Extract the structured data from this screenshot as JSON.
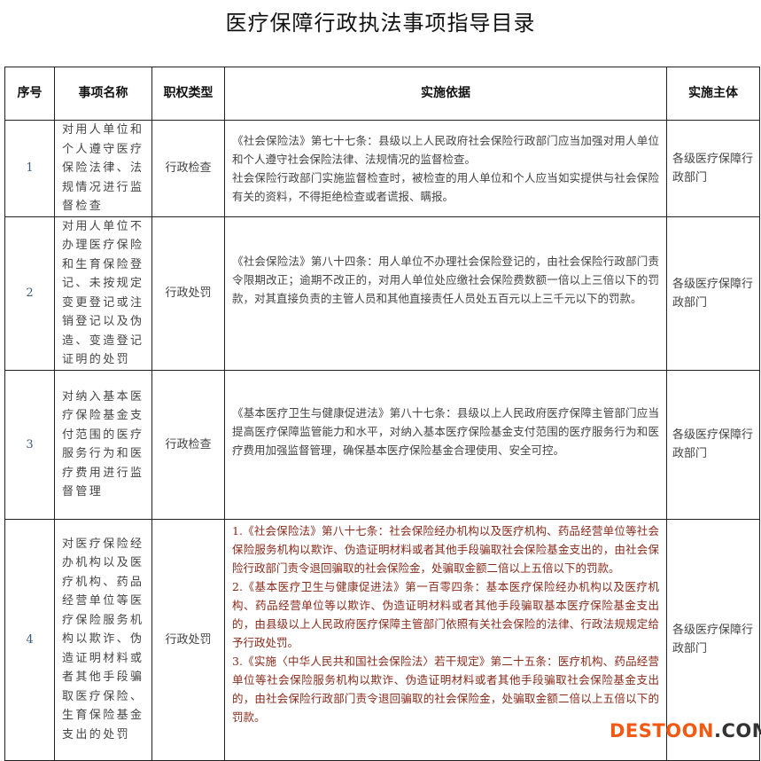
{
  "title": "医疗保障行政执法事项指导目录",
  "headers": [
    "序号",
    "事项名称",
    "职权类型",
    "实施依据",
    "实施主体"
  ],
  "rows": [
    {
      "no": "1",
      "name": "对用人单位和个人遵守医疗保险法律、法规情况进行监督检查",
      "type": "行政检查",
      "basis": [
        "《社会保险法》第七十七条：县级以上人民政府社会保险行政部门应当加强对用人单位和个人遵守社会保险法律、法规情况的监督检查。",
        "社会保险行政部门实施监督检查时，被检查的用人单位和个人应当如实提供与社会保险有关的资料，不得拒绝检查或者谎报、瞒报。"
      ],
      "body": "各级医疗保障行政部门"
    },
    {
      "no": "2",
      "name": "对用人单位不办理医疗保险和生育保险登记、未按规定变更登记或注销登记以及伪造、变造登记证明的处罚",
      "type": "行政处罚",
      "basis": [
        "《社会保险法》第八十四条：用人单位不办理社会保险登记的，由社会保险行政部门责令限期改正；逾期不改正的，对用人单位处应缴社会保险费数额一倍以上三倍以下的罚款，对其直接负责的主管人员和其他直接责任人员处五百元以上三千元以下的罚款。"
      ],
      "body": "各级医疗保障行政部门"
    },
    {
      "no": "3",
      "name": "对纳入基本医疗保险基金支付范围的医疗服务行为和医疗费用进行监督管理",
      "type": "行政检查",
      "basis": [
        "《基本医疗卫生与健康促进法》第八十七条：县级以上人民政府医疗保障主管部门应当提高医疗保障监管能力和水平，对纳入基本医疗保险基金支付范围的医疗服务行为和医疗费用加强监督管理，确保基本医疗保险基金合理使用、安全可控。"
      ],
      "body": "各级医疗保障行政部门"
    },
    {
      "no": "4",
      "name": "对医疗保险经办机构以及医疗机构、药品经营单位等医疗保险服务机构以欺诈、伪造证明材料或者其他手段骗取医疗保险、生育保险基金支出的处罚",
      "type": "行政处罚",
      "basis": [
        "1.《社会保险法》第八十七条：社会保险经办机构以及医疗机构、药品经营单位等社会保险服务机构以欺诈、伪造证明材料或者其他手段骗取社会保险基金支出的，由社会保险行政部门责令退回骗取的社会保险金，处骗取金额二倍以上五倍以下的罚款。",
        "2.《基本医疗卫生与健康促进法》第一百零四条：基本医疗保险经办机构以及医疗机构、药品经营单位等以欺诈、伪造证明材料或者其他手段骗取基本医疗保险基金支出的，由县级以上人民政府医疗保障主管部门依照有关社会保险的法律、行政法规规定给予行政处罚。",
        "3.《实施〈中华人民共和国社会保险法〉若干规定》第二十五条：医疗机构、药品经营单位等社会保险服务机构以欺诈、伪造证明材料或者其他手段骗取社会保险基金支出的，由社会保险行政部门责令退回骗取的社会保险金，处骗取金额二倍以上五倍以下的罚款。"
      ],
      "body": "各级医疗保障行政部门"
    }
  ],
  "watermark": {
    "brand": "DESTOON",
    ".com": ".COM",
    "accent": "#f05a14"
  }
}
